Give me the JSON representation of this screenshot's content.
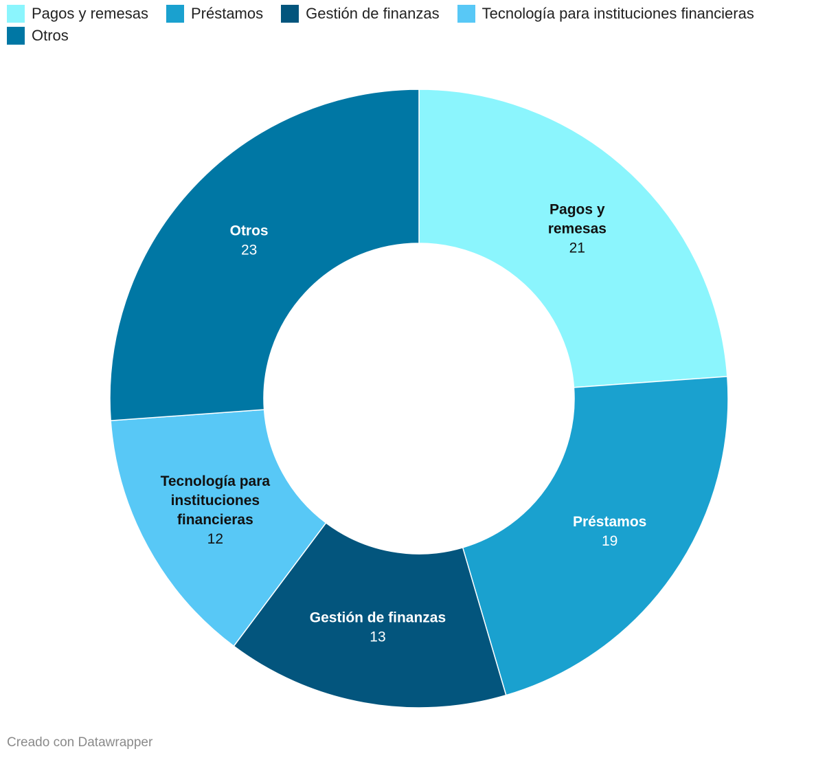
{
  "chart_data": {
    "type": "pie",
    "title": "",
    "categories": [
      "Pagos y remesas",
      "Préstamos",
      "Gestión de finanzas",
      "Tecnología para instituciones financieras",
      "Otros"
    ],
    "values": [
      21,
      19,
      13,
      12,
      23
    ],
    "label_lines": [
      [
        "Pagos y",
        "remesas"
      ],
      [
        "Préstamos"
      ],
      [
        "Gestión de finanzas"
      ],
      [
        "Tecnología para",
        "instituciones",
        "financieras"
      ],
      [
        "Otros"
      ]
    ],
    "colors": [
      "#8bf5fd",
      "#1aa1cf",
      "#03557d",
      "#58c8f6",
      "#0077a4"
    ],
    "label_colors": [
      "#111111",
      "#ffffff",
      "#ffffff",
      "#111111",
      "#ffffff"
    ],
    "legend_position": "top"
  },
  "footer": "Creado con Datawrapper"
}
